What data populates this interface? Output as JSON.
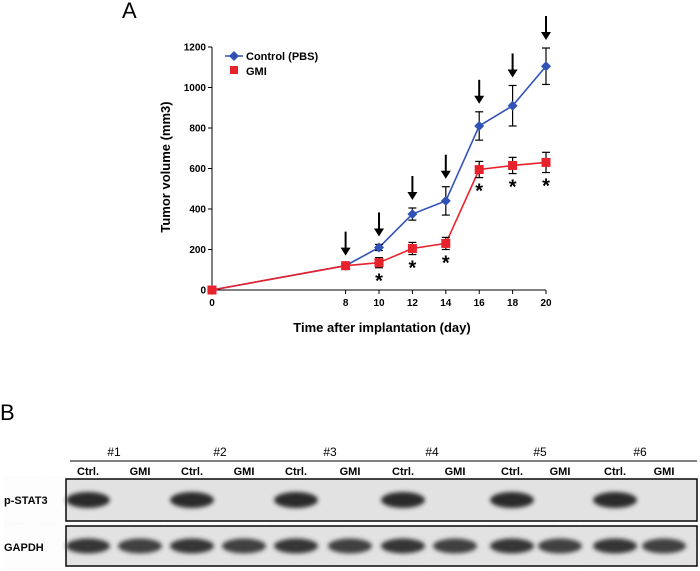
{
  "panel_a_label": "A",
  "panel_b_label": "B",
  "colors": {
    "control": "#3152b6",
    "gmi": "#e8222b",
    "axis": "#000000"
  },
  "chart_data": {
    "type": "line",
    "title": "",
    "xlabel": "Time after implantation (day)",
    "ylabel": "Tumor volume (mm3)",
    "x": [
      0,
      8,
      10,
      12,
      14,
      16,
      18,
      20
    ],
    "xticks": [
      0,
      8,
      10,
      12,
      14,
      16,
      18,
      20
    ],
    "xlim": [
      0,
      20
    ],
    "ylim": [
      0,
      1200
    ],
    "yticks": [
      0,
      200,
      400,
      600,
      800,
      1000,
      1200
    ],
    "grid": false,
    "legend_position": "top-left",
    "series": [
      {
        "name": "Control (PBS)",
        "marker": "diamond",
        "values": [
          0,
          120,
          210,
          375,
          440,
          810,
          910,
          1105
        ],
        "errors": [
          0,
          10,
          15,
          30,
          70,
          70,
          100,
          90
        ]
      },
      {
        "name": "GMI",
        "marker": "square",
        "values": [
          0,
          120,
          135,
          205,
          230,
          595,
          615,
          630
        ],
        "errors": [
          0,
          10,
          25,
          30,
          30,
          40,
          40,
          50
        ]
      }
    ],
    "treatment_arrow_days": [
      8,
      10,
      12,
      14,
      16,
      18,
      20
    ],
    "significance_days": [
      10,
      12,
      14,
      16,
      18,
      20
    ],
    "significance_mark": "*"
  },
  "blot": {
    "group_labels": [
      "#1",
      "#2",
      "#3",
      "#4",
      "#5",
      "#6"
    ],
    "lane_labels": [
      "Ctrl.",
      "GMI"
    ],
    "rows": [
      {
        "label": "p-STAT3",
        "ctrl_intensity": 0.9,
        "gmi_intensity": 0.03
      },
      {
        "label": "GAPDH",
        "ctrl_intensity": 0.85,
        "gmi_intensity": 0.8
      }
    ]
  }
}
